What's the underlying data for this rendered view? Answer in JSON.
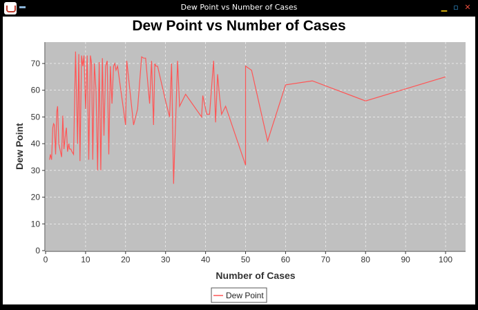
{
  "window": {
    "title": "Dew Point vs Number of Cases",
    "icons": [
      "app-icon",
      "menu-icon",
      "minimize-icon",
      "maximize-icon",
      "close-icon"
    ],
    "min_glyph": "▁",
    "max_glyph": "▫",
    "close_glyph": "✕"
  },
  "colors": {
    "plot_bg": "#c0c0c0",
    "series": "#ff5555",
    "grid": "#ffffff"
  },
  "chart_data": {
    "type": "line",
    "title": "Dew Point vs Number of Cases",
    "xlabel": "Number of Cases",
    "ylabel": "Dew Point",
    "xlim": [
      0,
      105
    ],
    "ylim": [
      0,
      78
    ],
    "xticks": [
      "0",
      "10",
      "20",
      "30",
      "40",
      "50",
      "60",
      "70",
      "80",
      "90",
      "100"
    ],
    "yticks": [
      "0",
      "10",
      "20",
      "30",
      "40",
      "50",
      "60",
      "70"
    ],
    "grid": true,
    "legend_position": "bottom",
    "series": [
      {
        "name": "Dew Point",
        "x": [
          1,
          1.2,
          1.5,
          1.8,
          2,
          2.2,
          2.5,
          2.8,
          3,
          3.3,
          3.6,
          4,
          4.3,
          4.6,
          5,
          5.2,
          5.5,
          5.8,
          6,
          6.3,
          6.6,
          7,
          7.5,
          8,
          8.3,
          8.6,
          9,
          9.3,
          9.6,
          10,
          10.4,
          10.8,
          11.2,
          11.5,
          11.8,
          12.2,
          12.6,
          13,
          13.4,
          13.8,
          14.2,
          14.6,
          15,
          15.4,
          15.8,
          16.2,
          16.6,
          17,
          17.3,
          17.6,
          18,
          20,
          20.3,
          22,
          23,
          24,
          24.5,
          25,
          26,
          26.5,
          27,
          27.3,
          27.6,
          28,
          30,
          31,
          31.5,
          32,
          33,
          33.5,
          35,
          39,
          39.3,
          40,
          40.3,
          41,
          42,
          42.5,
          43,
          43.5,
          44,
          45,
          50,
          50,
          51.5,
          55.5,
          60,
          66.7,
          80,
          100
        ],
        "y": [
          34,
          36,
          34,
          46,
          47.5,
          47,
          36,
          52,
          54,
          40,
          38,
          35,
          50.5,
          38,
          44,
          46,
          37,
          40,
          38,
          38,
          37,
          36,
          74.5,
          40,
          73.5,
          33.5,
          73,
          69,
          73,
          53,
          73,
          34,
          73,
          70,
          34,
          70,
          60,
          30,
          70.5,
          30,
          72,
          43,
          69,
          71,
          36,
          69,
          55,
          69,
          70,
          67.5,
          69,
          47,
          71,
          47,
          53,
          72.5,
          72,
          72,
          55,
          71,
          47,
          70,
          69,
          69,
          56,
          50,
          70,
          25,
          71,
          54,
          58.5,
          50,
          58,
          53,
          51,
          51,
          71,
          48,
          66,
          57.5,
          51,
          54,
          32,
          69,
          67.5,
          41,
          62,
          63.5,
          56,
          65
        ]
      }
    ]
  }
}
